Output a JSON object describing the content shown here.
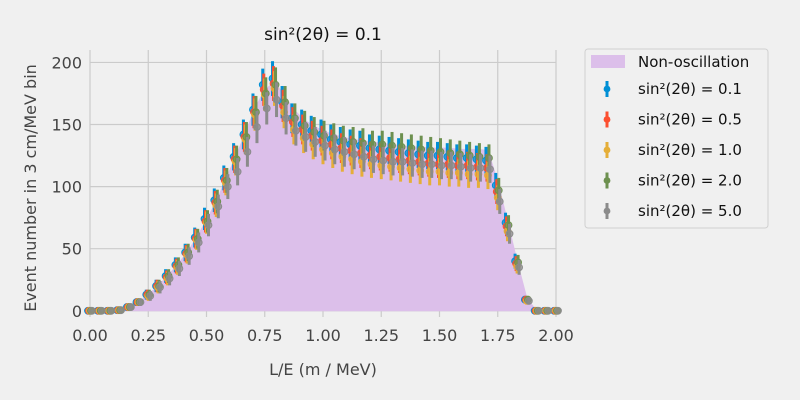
{
  "chart_data": {
    "type": "scatter",
    "title": "sin²(2θ) = 0.1",
    "xlabel": "L/E (m / MeV)",
    "ylabel": "Event number in 3 cm/MeV bin",
    "xlim": [
      0.0,
      2.0
    ],
    "ylim": [
      -5,
      210
    ],
    "x_ticks": [
      "0.00",
      "0.25",
      "0.50",
      "0.75",
      "1.00",
      "1.25",
      "1.50",
      "1.75",
      "2.00"
    ],
    "y_ticks": [
      "0",
      "50",
      "100",
      "150",
      "200"
    ],
    "grid": true,
    "legend_position": "outside-right",
    "x": [
      0.0,
      0.042,
      0.083,
      0.125,
      0.167,
      0.208,
      0.25,
      0.292,
      0.333,
      0.375,
      0.417,
      0.458,
      0.5,
      0.542,
      0.583,
      0.625,
      0.667,
      0.708,
      0.75,
      0.792,
      0.833,
      0.875,
      0.917,
      0.958,
      1.0,
      1.042,
      1.083,
      1.125,
      1.167,
      1.208,
      1.25,
      1.292,
      1.333,
      1.375,
      1.417,
      1.458,
      1.5,
      1.542,
      1.583,
      1.625,
      1.667,
      1.708,
      1.75,
      1.792,
      1.833,
      1.875,
      1.917,
      1.958,
      2.0
    ],
    "area": {
      "name": "Non-oscillation",
      "color": "#dcbfea",
      "values": [
        0,
        0,
        0,
        0.5,
        3,
        7,
        13,
        20,
        28,
        37,
        47,
        59,
        73,
        88,
        106,
        124,
        143,
        163,
        178,
        184,
        174,
        162,
        154,
        149,
        145,
        142,
        140,
        138,
        137,
        136,
        135,
        134,
        133,
        132,
        132,
        131,
        131,
        131,
        130,
        130,
        130,
        129,
        104,
        72,
        40,
        10,
        0,
        0,
        0
      ]
    },
    "series": [
      {
        "name": "sin²(2θ) = 0.1",
        "color": "#008fd5",
        "values": [
          0,
          0,
          0,
          0.5,
          3,
          7,
          13,
          20,
          28,
          37,
          47,
          59,
          74,
          89,
          107,
          124,
          142,
          162,
          182,
          187,
          168,
          155,
          150,
          145,
          142,
          138,
          136,
          134,
          133,
          131,
          130,
          129,
          128,
          127,
          126,
          125,
          125,
          124,
          123,
          123,
          122,
          121,
          101,
          71,
          40,
          9,
          0,
          0,
          0
        ],
        "errors": [
          0.5,
          0.5,
          0.5,
          0.8,
          2,
          3,
          4,
          5,
          5.5,
          6,
          7,
          8,
          9,
          9.5,
          10,
          11,
          12,
          13,
          13,
          14,
          13,
          12,
          12,
          12,
          12,
          12,
          12,
          12,
          12,
          11,
          11,
          11,
          11,
          11,
          11,
          11,
          11,
          11,
          11,
          11,
          11,
          11,
          10,
          8,
          6,
          3,
          0.5,
          0.5,
          0.5
        ]
      },
      {
        "name": "sin²(2θ) = 0.5",
        "color": "#fc4f30",
        "values": [
          0,
          0,
          0,
          0.5,
          3,
          7,
          13,
          20,
          27,
          36,
          46,
          58,
          72,
          87,
          105,
          122,
          140,
          160,
          178,
          183,
          165,
          152,
          146,
          141,
          137,
          134,
          131,
          129,
          127,
          125,
          124,
          123,
          122,
          121,
          120,
          119,
          118,
          118,
          117,
          117,
          116,
          115,
          96,
          68,
          38,
          9,
          0,
          0,
          0
        ],
        "errors": [
          0.5,
          0.5,
          0.5,
          0.8,
          2,
          3,
          4,
          5,
          5.5,
          6,
          7,
          8,
          9,
          9.5,
          10,
          11,
          12,
          13,
          13,
          14,
          13,
          12,
          12,
          12,
          12,
          12,
          12,
          12,
          12,
          11,
          11,
          11,
          11,
          11,
          11,
          11,
          11,
          11,
          11,
          11,
          11,
          11,
          10,
          8,
          6,
          3,
          0.5,
          0.5,
          0.5
        ]
      },
      {
        "name": "sin²(2θ) = 1.0",
        "color": "#e5ae38",
        "values": [
          0,
          0,
          0,
          0.5,
          3,
          7,
          12,
          19,
          26,
          35,
          45,
          57,
          71,
          85,
          103,
          120,
          138,
          158,
          174,
          179,
          160,
          146,
          139,
          134,
          130,
          127,
          124,
          122,
          120,
          118,
          117,
          116,
          115,
          114,
          113,
          112,
          112,
          111,
          111,
          110,
          110,
          109,
          91,
          64,
          36,
          8,
          0,
          0,
          0
        ],
        "errors": [
          0.5,
          0.5,
          0.5,
          0.8,
          2,
          3,
          4,
          5,
          5.5,
          6,
          7,
          8,
          9,
          9.5,
          10,
          11,
          12,
          13,
          13,
          14,
          13,
          12,
          12,
          12,
          12,
          12,
          12,
          12,
          12,
          11,
          11,
          11,
          11,
          11,
          11,
          11,
          11,
          11,
          11,
          11,
          11,
          11,
          10,
          8,
          6,
          3,
          0.5,
          0.5,
          0.5
        ]
      },
      {
        "name": "sin²(2θ) = 2.0",
        "color": "#6d904f",
        "values": [
          0,
          0,
          0,
          0.5,
          3,
          7,
          13,
          20,
          28,
          37,
          47,
          58,
          72,
          88,
          105,
          122,
          140,
          160,
          175,
          182,
          168,
          155,
          149,
          144,
          141,
          139,
          137,
          136,
          135,
          134,
          134,
          133,
          132,
          131,
          130,
          129,
          128,
          127,
          126,
          125,
          124,
          123,
          97,
          69,
          39,
          9,
          0,
          0,
          0
        ],
        "errors": [
          0.5,
          0.5,
          0.5,
          0.8,
          2,
          3,
          4,
          5,
          5.5,
          6,
          7,
          8,
          9,
          9.5,
          10,
          11,
          12,
          13,
          13,
          14,
          13,
          12,
          12,
          12,
          12,
          12,
          12,
          12,
          12,
          11,
          11,
          11,
          11,
          11,
          11,
          11,
          11,
          11,
          11,
          11,
          11,
          11,
          10,
          8,
          6,
          3,
          0.5,
          0.5,
          0.5
        ]
      },
      {
        "name": "sin²(2θ) = 5.0",
        "color": "#8b8b8b",
        "values": [
          0,
          0,
          0,
          0.5,
          3,
          7,
          12,
          19,
          26,
          34,
          44,
          55,
          69,
          84,
          100,
          112,
          128,
          148,
          163,
          170,
          155,
          145,
          140,
          136,
          133,
          130,
          128,
          126,
          124,
          122,
          121,
          120,
          120,
          119,
          118,
          118,
          117,
          117,
          116,
          115,
          115,
          114,
          88,
          62,
          35,
          8,
          0,
          0,
          0
        ],
        "errors": [
          0.5,
          0.5,
          0.5,
          0.8,
          2,
          3,
          4,
          5,
          5.5,
          6,
          7,
          8,
          9,
          9.5,
          10,
          11,
          12,
          13,
          13,
          14,
          13,
          12,
          12,
          12,
          12,
          12,
          12,
          12,
          12,
          11,
          11,
          11,
          11,
          11,
          11,
          11,
          11,
          11,
          11,
          11,
          11,
          11,
          10,
          8,
          6,
          3,
          0.5,
          0.5,
          0.5
        ]
      }
    ]
  }
}
